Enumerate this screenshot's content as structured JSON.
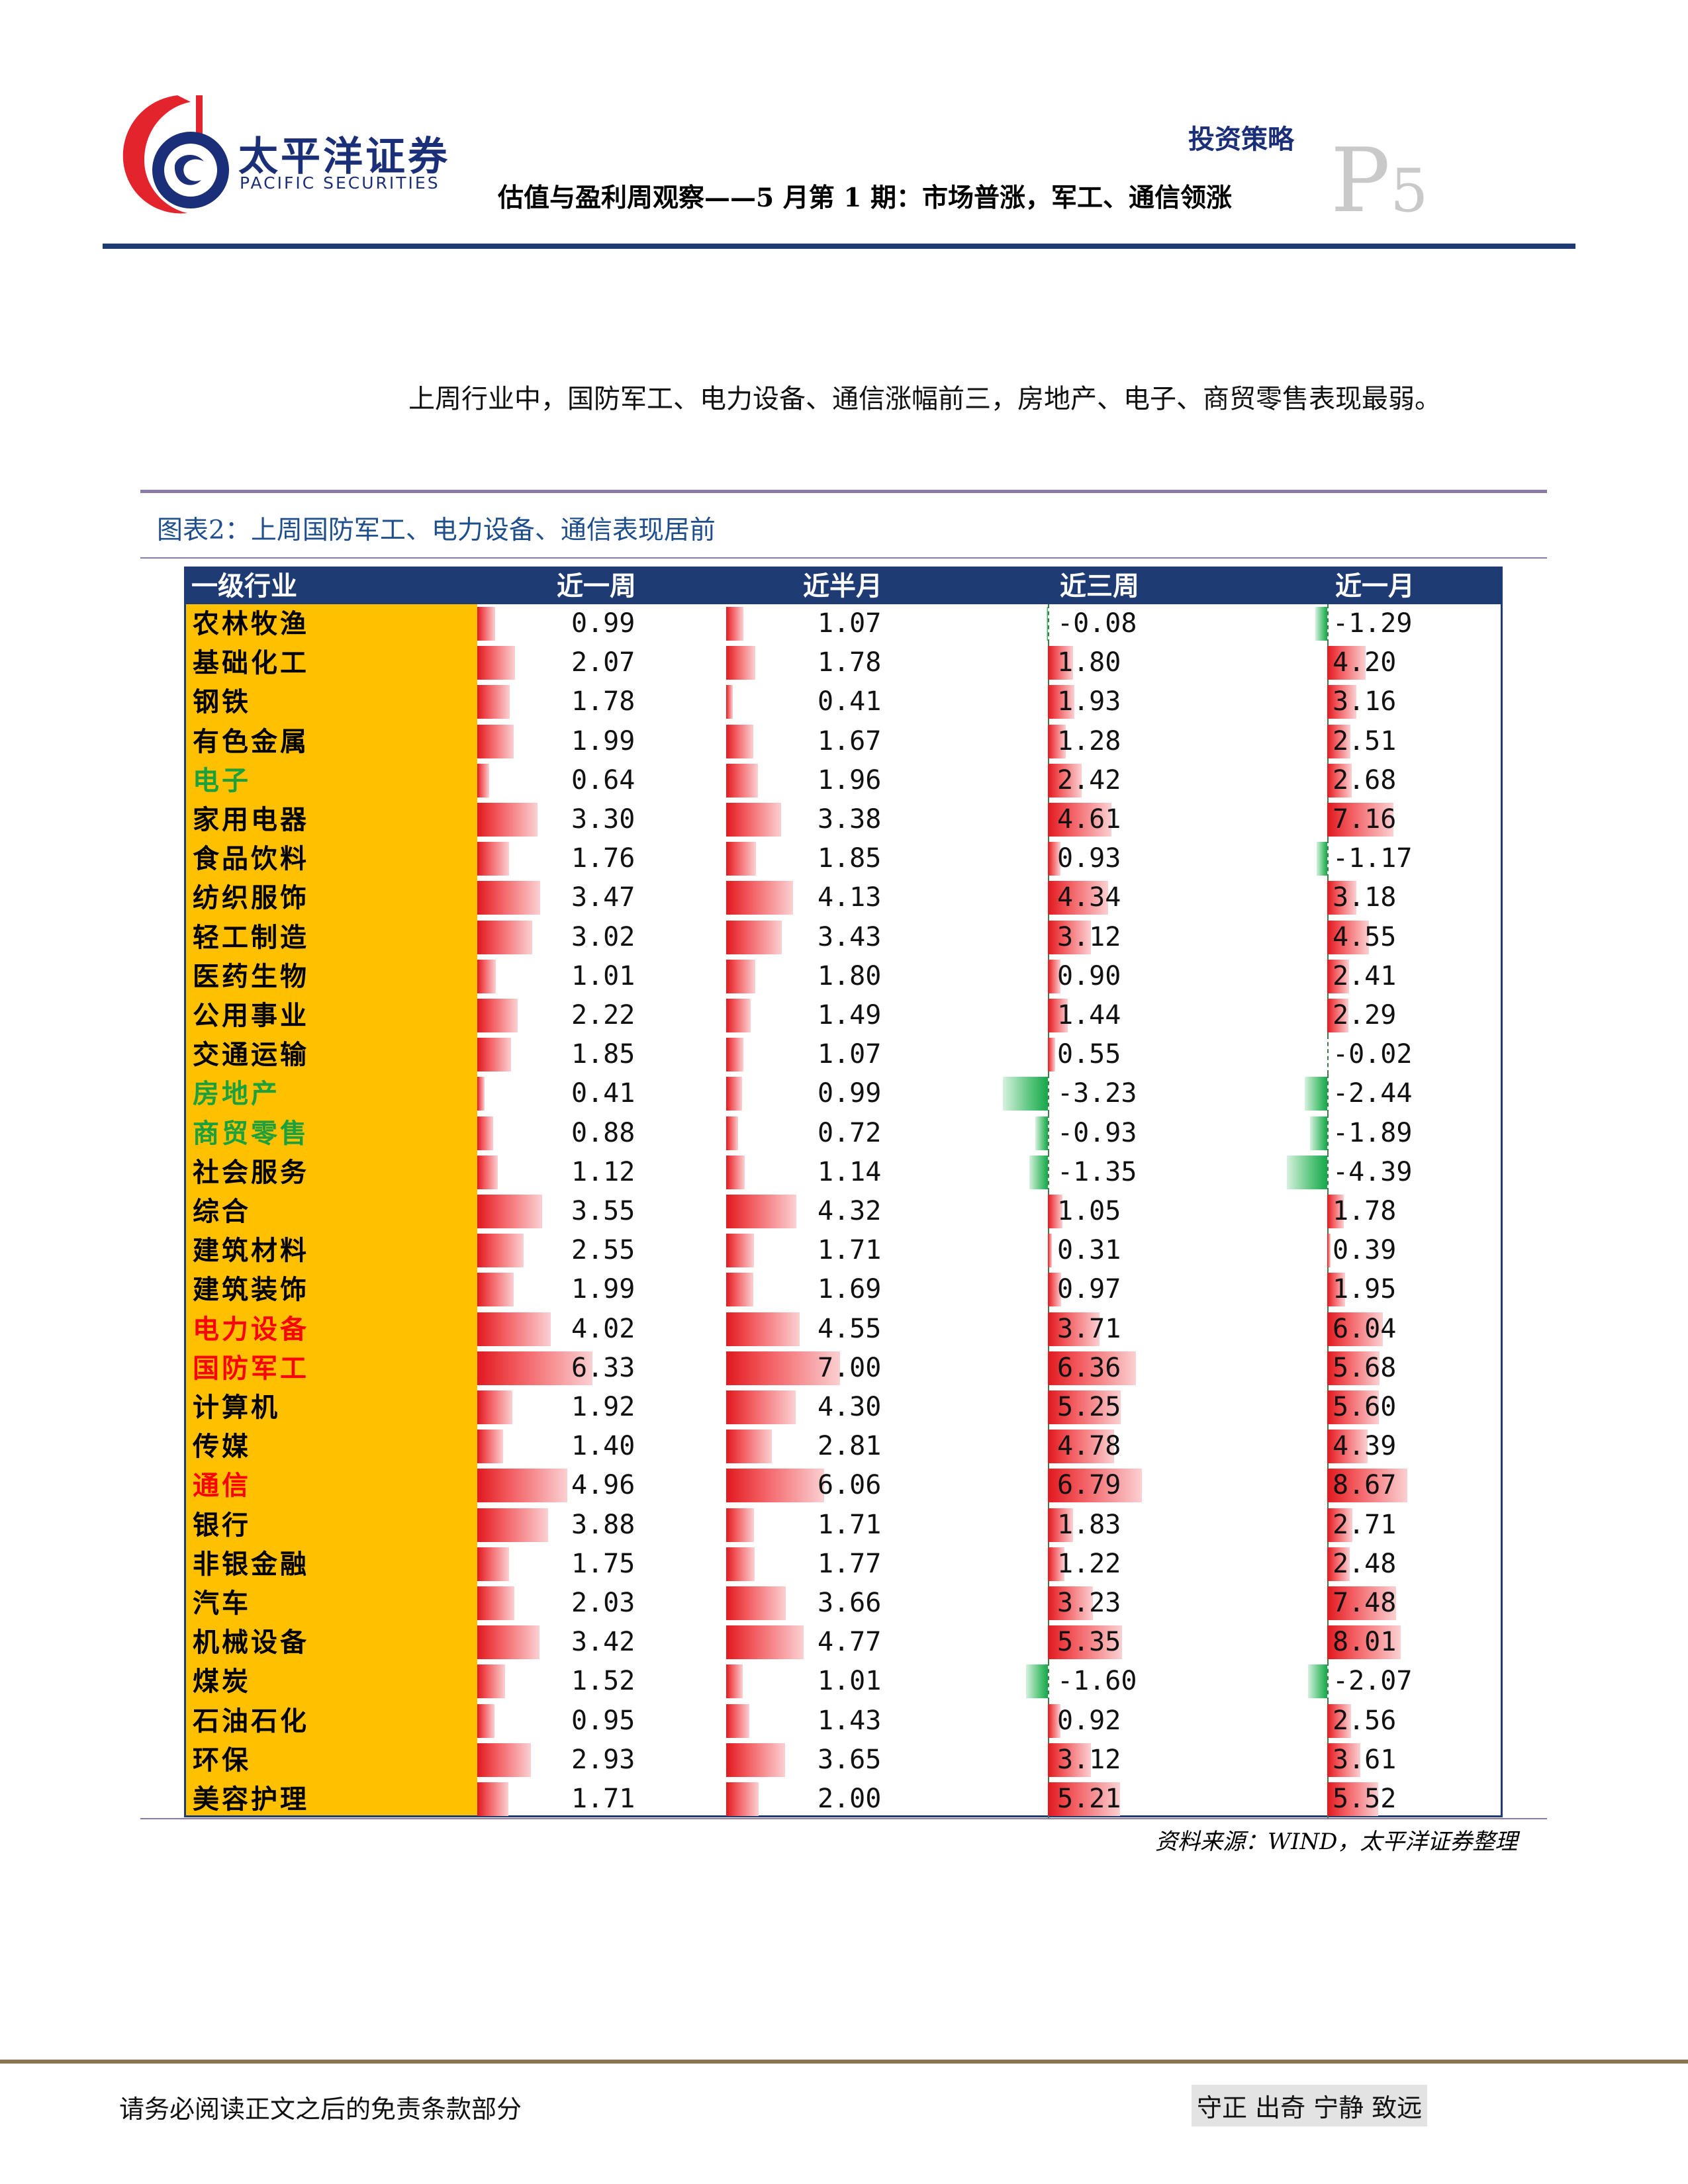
{
  "header": {
    "brand_cn": "太平洋证券",
    "brand_en": "PACIFIC SECURITIES",
    "category": "投资策略",
    "report_title": "估值与盈利周观察——5 月第 1 期：市场普涨，军工、通信领涨",
    "page_letter": "P",
    "page_number": "5"
  },
  "intro": "上周行业中，国防军工、电力设备、通信涨幅前三，房地产、电子、商贸零售表现最弱。",
  "caption": "图表2：上周国防军工、电力设备、通信表现居前",
  "source": "资料来源：WIND，太平洋证券整理",
  "footer": {
    "disclaimer": "请务必阅读正文之后的免责条款部分",
    "motto": "守正 出奇 宁静 致远"
  },
  "colors": {
    "brand_blue": "#1b2f78",
    "header_fill": "#1f3b73",
    "name_fill": "#ffc000",
    "positive": "#e0191f",
    "negative": "#15a74a",
    "name_green": "#1aa03c",
    "name_red": "#ff0000"
  },
  "chart_data": {
    "type": "table",
    "columns": [
      "一级行业",
      "近一周",
      "近半月",
      "近三周",
      "近一月"
    ],
    "rows": [
      {
        "name": "农林牧渔",
        "color": "black",
        "values": [
          "0.99",
          "1.07",
          "-0.08",
          "-1.29"
        ]
      },
      {
        "name": "基础化工",
        "color": "black",
        "values": [
          "2.07",
          "1.78",
          "1.80",
          "4.20"
        ]
      },
      {
        "name": "钢铁",
        "color": "black",
        "values": [
          "1.78",
          "0.41",
          "1.93",
          "3.16"
        ]
      },
      {
        "name": "有色金属",
        "color": "black",
        "values": [
          "1.99",
          "1.67",
          "1.28",
          "2.51"
        ]
      },
      {
        "name": "电子",
        "color": "green",
        "values": [
          "0.64",
          "1.96",
          "2.42",
          "2.68"
        ]
      },
      {
        "name": "家用电器",
        "color": "black",
        "values": [
          "3.30",
          "3.38",
          "4.61",
          "7.16"
        ]
      },
      {
        "name": "食品饮料",
        "color": "black",
        "values": [
          "1.76",
          "1.85",
          "0.93",
          "-1.17"
        ]
      },
      {
        "name": "纺织服饰",
        "color": "black",
        "values": [
          "3.47",
          "4.13",
          "4.34",
          "3.18"
        ]
      },
      {
        "name": "轻工制造",
        "color": "black",
        "values": [
          "3.02",
          "3.43",
          "3.12",
          "4.55"
        ]
      },
      {
        "name": "医药生物",
        "color": "black",
        "values": [
          "1.01",
          "1.80",
          "0.90",
          "2.41"
        ]
      },
      {
        "name": "公用事业",
        "color": "black",
        "values": [
          "2.22",
          "1.49",
          "1.44",
          "2.29"
        ]
      },
      {
        "name": "交通运输",
        "color": "black",
        "values": [
          "1.85",
          "1.07",
          "0.55",
          "-0.02"
        ]
      },
      {
        "name": "房地产",
        "color": "green",
        "values": [
          "0.41",
          "0.99",
          "-3.23",
          "-2.44"
        ]
      },
      {
        "name": "商贸零售",
        "color": "green",
        "values": [
          "0.88",
          "0.72",
          "-0.93",
          "-1.89"
        ]
      },
      {
        "name": "社会服务",
        "color": "black",
        "values": [
          "1.12",
          "1.14",
          "-1.35",
          "-4.39"
        ]
      },
      {
        "name": "综合",
        "color": "black",
        "values": [
          "3.55",
          "4.32",
          "1.05",
          "1.78"
        ]
      },
      {
        "name": "建筑材料",
        "color": "black",
        "values": [
          "2.55",
          "1.71",
          "0.31",
          "0.39"
        ]
      },
      {
        "name": "建筑装饰",
        "color": "black",
        "values": [
          "1.99",
          "1.69",
          "0.97",
          "1.95"
        ]
      },
      {
        "name": "电力设备",
        "color": "red",
        "values": [
          "4.02",
          "4.55",
          "3.71",
          "6.04"
        ]
      },
      {
        "name": "国防军工",
        "color": "red",
        "values": [
          "6.33",
          "7.00",
          "6.36",
          "5.68"
        ]
      },
      {
        "name": "计算机",
        "color": "black",
        "values": [
          "1.92",
          "4.30",
          "5.25",
          "5.60"
        ]
      },
      {
        "name": "传媒",
        "color": "black",
        "values": [
          "1.40",
          "2.81",
          "4.78",
          "4.39"
        ]
      },
      {
        "name": "通信",
        "color": "red",
        "values": [
          "4.96",
          "6.06",
          "6.79",
          "8.67"
        ]
      },
      {
        "name": "银行",
        "color": "black",
        "values": [
          "3.88",
          "1.71",
          "1.83",
          "2.71"
        ]
      },
      {
        "name": "非银金融",
        "color": "black",
        "values": [
          "1.75",
          "1.77",
          "1.22",
          "2.48"
        ]
      },
      {
        "name": "汽车",
        "color": "black",
        "values": [
          "2.03",
          "3.66",
          "3.23",
          "7.48"
        ]
      },
      {
        "name": "机械设备",
        "color": "black",
        "values": [
          "3.42",
          "4.77",
          "5.35",
          "8.01"
        ]
      },
      {
        "name": "煤炭",
        "color": "black",
        "values": [
          "1.52",
          "1.01",
          "-1.60",
          "-2.07"
        ]
      },
      {
        "name": "石油石化",
        "color": "black",
        "values": [
          "0.95",
          "1.43",
          "0.92",
          "2.56"
        ]
      },
      {
        "name": "环保",
        "color": "black",
        "values": [
          "2.93",
          "3.65",
          "3.12",
          "3.61"
        ]
      },
      {
        "name": "美容护理",
        "color": "black",
        "values": [
          "1.71",
          "2.00",
          "5.21",
          "5.52"
        ]
      }
    ]
  }
}
